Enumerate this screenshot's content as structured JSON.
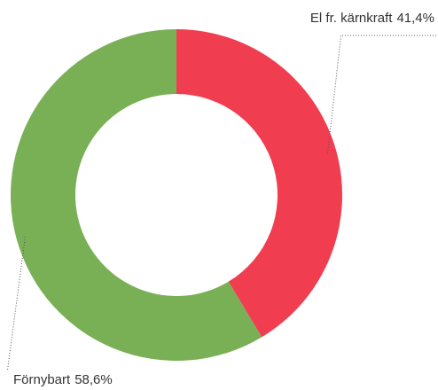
{
  "chart_data": {
    "type": "donut",
    "categories": [
      "El fr. kärnkraft",
      "Förnybart"
    ],
    "values": [
      41.4,
      58.6
    ],
    "value_labels": [
      "41,4%",
      "58,6%"
    ],
    "colors": [
      "#f03e50",
      "#79b056"
    ]
  }
}
